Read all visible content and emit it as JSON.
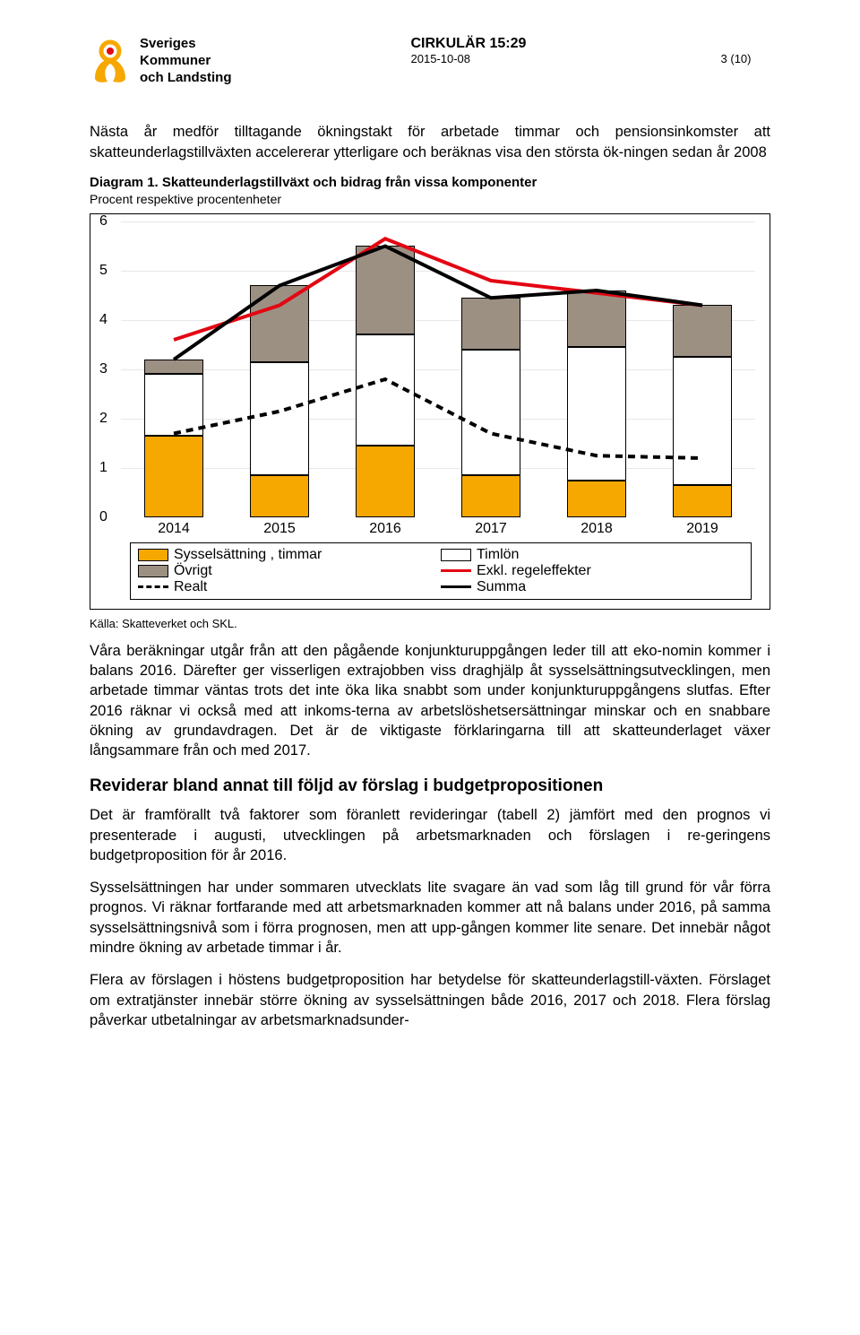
{
  "org": {
    "line1": "Sveriges",
    "line2": "Kommuner",
    "line3": "och Landsting"
  },
  "header": {
    "title": "CIRKULÄR 15:29",
    "date": "2015-10-08",
    "page": "3 (10)"
  },
  "para1": "Nästa år medför tilltagande ökningstakt för arbetade timmar och pensionsinkomster att skatteunderlagstillväxten accelererar ytterligare och beräknas visa den största ök-ningen sedan år 2008",
  "diagram": {
    "label": "Diagram 1. Skatteunderlagstillväxt och bidrag från vissa komponenter",
    "sub": "Procent respektive procentenheter",
    "source": "Källa: Skatteverket och SKL."
  },
  "chart": {
    "ymax": 6,
    "yticks": [
      0,
      1,
      2,
      3,
      4,
      5,
      6
    ],
    "categories": [
      "2014",
      "2015",
      "2016",
      "2017",
      "2018",
      "2019"
    ],
    "sysselsattning": [
      1.65,
      0.85,
      1.45,
      0.85,
      0.75,
      0.65
    ],
    "timlon": [
      1.25,
      2.3,
      2.25,
      2.55,
      2.7,
      2.6
    ],
    "ovrigt": [
      0.3,
      1.55,
      1.8,
      1.05,
      1.15,
      1.05
    ],
    "summa": [
      3.2,
      4.7,
      5.5,
      4.45,
      4.6,
      4.3
    ],
    "exkl": [
      3.6,
      4.3,
      5.65,
      4.8,
      4.55,
      4.3
    ],
    "realt": [
      1.7,
      2.15,
      2.8,
      1.7,
      1.25,
      1.2
    ],
    "colors": {
      "sysselsattning": "#f6a800",
      "timlon": "#ffffff",
      "ovrigt": "#9c9083",
      "summa": "#000000",
      "exkl": "#e30613",
      "realt": "#000000",
      "grid": "#e8e8e8",
      "frame": "#000000"
    },
    "legend": {
      "sysselsattning": "Sysselsättning , timmar",
      "timlon": "Timlön",
      "ovrigt": "Övrigt",
      "exkl": "Exkl. regeleffekter",
      "realt": "Realt",
      "summa": "Summa"
    }
  },
  "para2": "Våra beräkningar utgår från att den pågående konjunkturuppgången leder till att eko-nomin kommer i balans 2016. Därefter ger visserligen extrajobben viss draghjälp åt sysselsättningsutvecklingen, men arbetade timmar väntas trots det inte öka lika snabbt som under konjunkturuppgångens slutfas. Efter 2016 räknar vi också med att inkoms-terna av arbetslöshetsersättningar minskar och en snabbare ökning av grundavdragen. Det är de viktigaste förklaringarna till att skatteunderlaget växer långsammare från och med 2017.",
  "h2": "Reviderar bland annat till följd av förslag i budgetpropositionen",
  "para3": "Det är framförallt två faktorer som föranlett revideringar (tabell 2) jämfört med den prognos vi presenterade i augusti, utvecklingen på arbetsmarknaden och förslagen i re-geringens budgetproposition för år 2016.",
  "para4": "Sysselsättningen har under sommaren utvecklats lite svagare än vad som låg till grund för vår förra prognos. Vi räknar fortfarande med att arbetsmarknaden kommer att nå balans under 2016, på samma sysselsättningsnivå som i förra prognosen, men att upp-gången kommer lite senare. Det innebär något mindre ökning av arbetade timmar i år.",
  "para5": "Flera av förslagen i höstens budgetproposition har betydelse för skatteunderlagstill-växten. Förslaget om extratjänster innebär större ökning av sysselsättningen både 2016, 2017 och 2018. Flera förslag påverkar utbetalningar av arbetsmarknadsunder-"
}
